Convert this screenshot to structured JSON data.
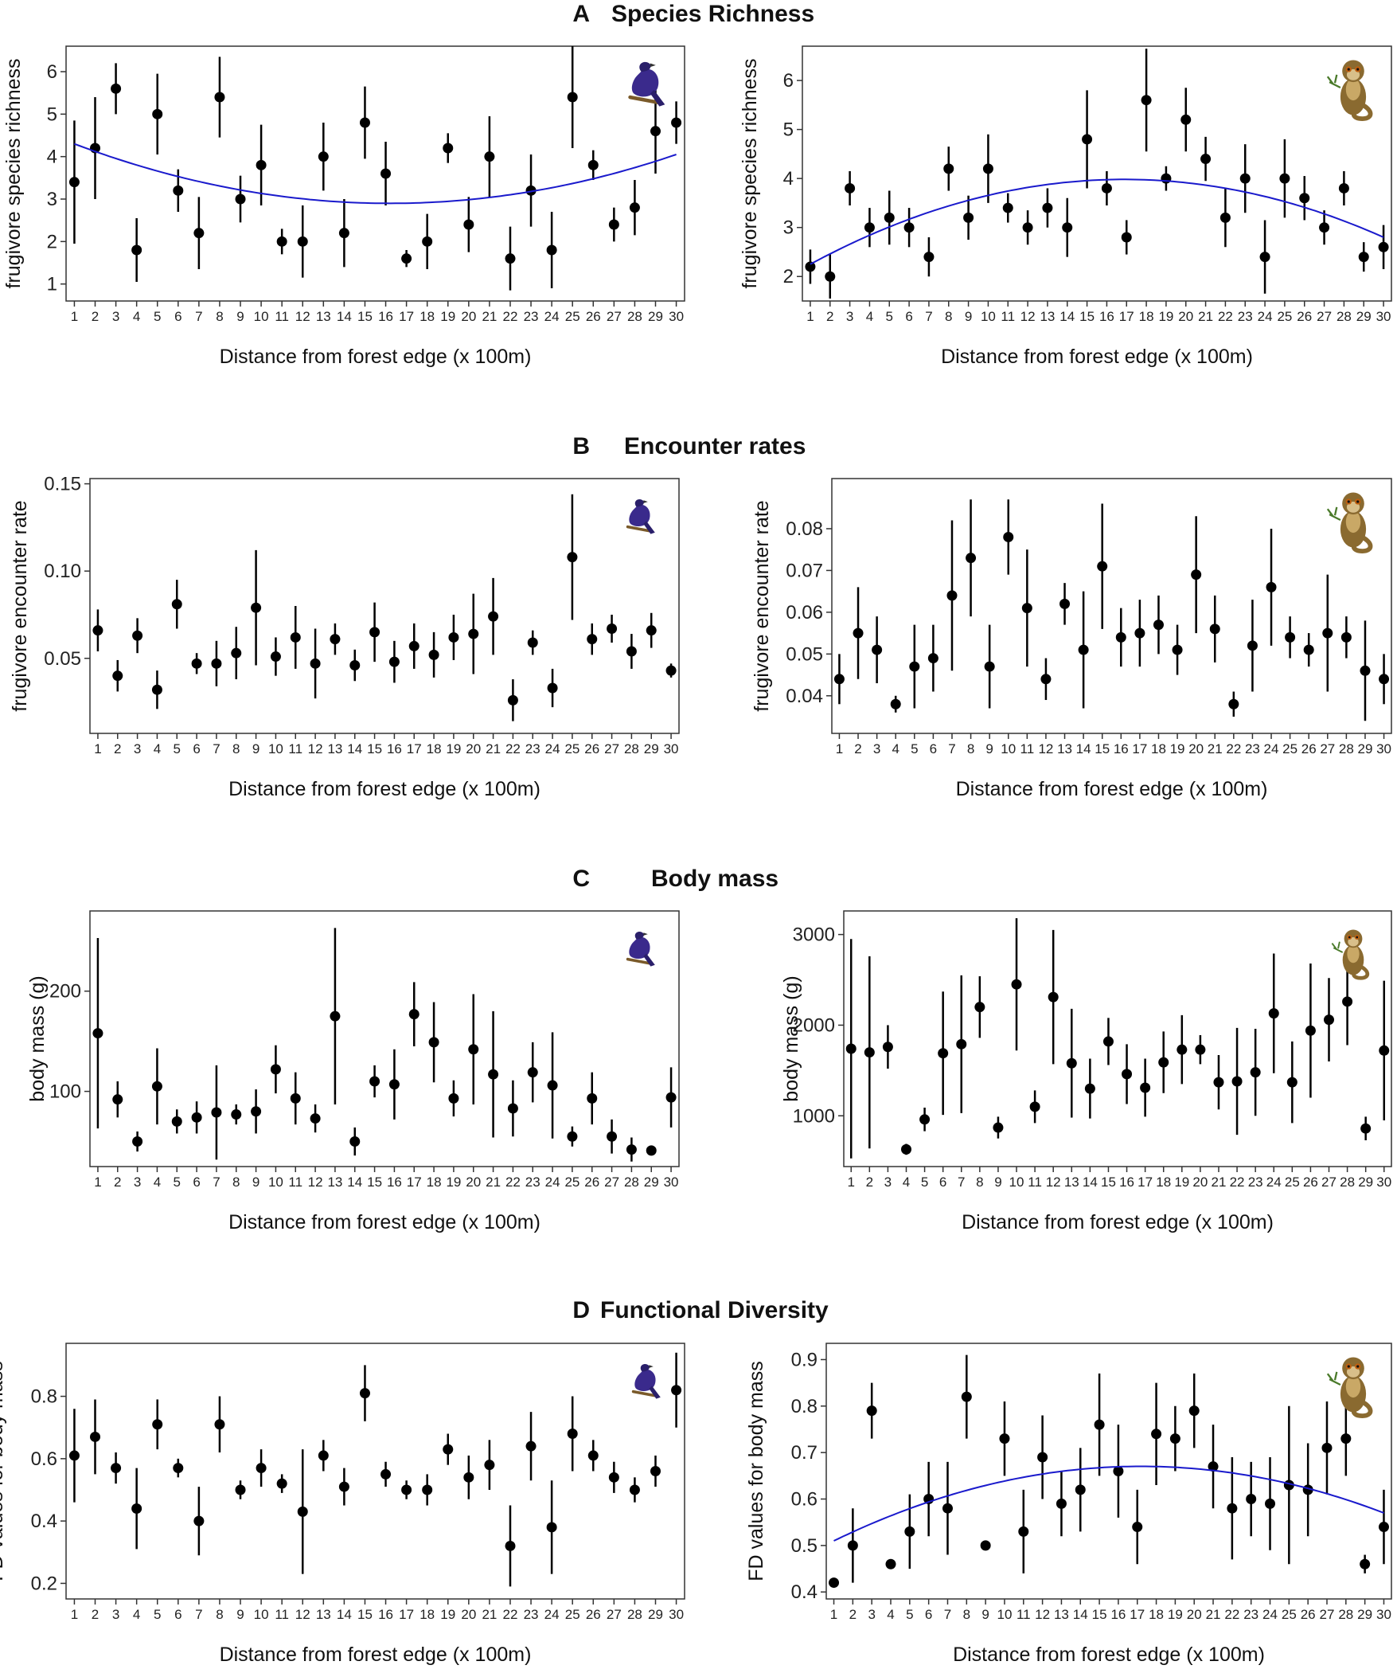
{
  "figure": {
    "sections": [
      {
        "letter": "A",
        "title": "Species Richness"
      },
      {
        "letter": "B",
        "title": "Encounter rates"
      },
      {
        "letter": "C",
        "title": "Body mass"
      },
      {
        "letter": "D",
        "title": "Functional Diversity"
      }
    ],
    "icons": {
      "bird": "bird-icon",
      "lemur": "lemur-icon"
    },
    "colors": {
      "point": "#000000",
      "trend": "#1a1acc",
      "frame": "#333333",
      "bird": "#3a2a8c",
      "lemur": "#8a6a30"
    }
  },
  "chart_data": [
    {
      "id": "A-bird",
      "section": "A",
      "type": "scatter",
      "title": "",
      "xlabel": "Distance from forest edge (x 100m)",
      "ylabel": "frugivore species richness",
      "x": [
        1,
        2,
        3,
        4,
        5,
        6,
        7,
        8,
        9,
        10,
        11,
        12,
        13,
        14,
        15,
        16,
        17,
        18,
        19,
        20,
        21,
        22,
        23,
        24,
        25,
        26,
        27,
        28,
        29,
        30
      ],
      "y": [
        3.4,
        4.2,
        5.6,
        1.8,
        5.0,
        3.2,
        2.2,
        5.4,
        3.0,
        3.8,
        2.0,
        2.0,
        4.0,
        2.2,
        4.8,
        3.6,
        1.6,
        2.0,
        4.2,
        2.4,
        4.0,
        1.6,
        3.2,
        1.8,
        5.4,
        3.8,
        2.4,
        2.8,
        4.6,
        4.8
      ],
      "err": [
        1.45,
        1.2,
        0.6,
        0.75,
        0.95,
        0.5,
        0.85,
        0.95,
        0.55,
        0.95,
        0.3,
        0.85,
        0.8,
        0.8,
        0.85,
        0.75,
        0.2,
        0.65,
        0.35,
        0.65,
        0.95,
        0.75,
        0.85,
        0.9,
        1.2,
        0.35,
        0.4,
        0.65,
        1.0,
        0.5
      ],
      "ylim": [
        0.6,
        6.6
      ],
      "yticks": [
        1,
        2,
        3,
        4,
        5,
        6
      ],
      "trend": [
        4.3,
        2.9,
        4.05
      ],
      "icon": "bird"
    },
    {
      "id": "A-lemur",
      "section": "A",
      "type": "scatter",
      "title": "",
      "xlabel": "Distance from forest edge (x 100m)",
      "ylabel": "frugivore species richness",
      "x": [
        1,
        2,
        3,
        4,
        5,
        6,
        7,
        8,
        9,
        10,
        11,
        12,
        13,
        14,
        15,
        16,
        17,
        18,
        19,
        20,
        21,
        22,
        23,
        24,
        25,
        26,
        27,
        28,
        29,
        30
      ],
      "y": [
        2.2,
        2.0,
        3.8,
        3.0,
        3.2,
        3.0,
        2.4,
        4.2,
        3.2,
        4.2,
        3.4,
        3.0,
        3.4,
        3.0,
        4.8,
        3.8,
        2.8,
        5.6,
        4.0,
        5.2,
        4.4,
        3.2,
        4.0,
        2.4,
        4.0,
        3.6,
        3.0,
        3.8,
        2.4,
        2.6
      ],
      "err": [
        0.35,
        0.45,
        0.35,
        0.4,
        0.55,
        0.4,
        0.4,
        0.45,
        0.45,
        0.7,
        0.3,
        0.35,
        0.4,
        0.6,
        1.0,
        0.35,
        0.35,
        1.05,
        0.25,
        0.65,
        0.45,
        0.6,
        0.7,
        0.75,
        0.8,
        0.45,
        0.35,
        0.35,
        0.3,
        0.45
      ],
      "ylim": [
        1.5,
        6.7
      ],
      "yticks": [
        2,
        3,
        4,
        5,
        6
      ],
      "trend": [
        2.25,
        3.98,
        2.8
      ],
      "icon": "lemur"
    },
    {
      "id": "B-bird",
      "section": "B",
      "type": "scatter",
      "title": "",
      "xlabel": "Distance from forest edge (x 100m)",
      "ylabel": "frugivore encounter rate",
      "x": [
        1,
        2,
        3,
        4,
        5,
        6,
        7,
        8,
        9,
        10,
        11,
        12,
        13,
        14,
        15,
        16,
        17,
        18,
        19,
        20,
        21,
        22,
        23,
        24,
        25,
        26,
        27,
        28,
        29,
        30
      ],
      "y": [
        0.066,
        0.04,
        0.063,
        0.032,
        0.081,
        0.047,
        0.047,
        0.053,
        0.079,
        0.051,
        0.062,
        0.047,
        0.061,
        0.046,
        0.065,
        0.048,
        0.057,
        0.052,
        0.062,
        0.064,
        0.074,
        0.026,
        0.059,
        0.033,
        0.108,
        0.061,
        0.067,
        0.054,
        0.066,
        0.043
      ],
      "err": [
        0.012,
        0.009,
        0.01,
        0.011,
        0.014,
        0.006,
        0.013,
        0.015,
        0.033,
        0.011,
        0.018,
        0.02,
        0.009,
        0.009,
        0.017,
        0.012,
        0.013,
        0.013,
        0.013,
        0.023,
        0.022,
        0.012,
        0.007,
        0.011,
        0.036,
        0.009,
        0.008,
        0.01,
        0.01,
        0.004
      ],
      "ylim": [
        0.007,
        0.153
      ],
      "yticks": [
        0.05,
        0.1,
        0.15
      ],
      "ytick_labels": [
        "0.05",
        "0.10",
        "0.15"
      ],
      "trend": null,
      "icon": "bird"
    },
    {
      "id": "B-lemur",
      "section": "B",
      "type": "scatter",
      "title": "",
      "xlabel": "Distance from forest edge (x 100m)",
      "ylabel": "frugivore encounter rate",
      "x": [
        1,
        2,
        3,
        4,
        5,
        6,
        7,
        8,
        9,
        10,
        11,
        12,
        13,
        14,
        15,
        16,
        17,
        18,
        19,
        20,
        21,
        22,
        23,
        24,
        25,
        26,
        27,
        28,
        29,
        30
      ],
      "y": [
        0.044,
        0.055,
        0.051,
        0.038,
        0.047,
        0.049,
        0.064,
        0.073,
        0.047,
        0.078,
        0.061,
        0.044,
        0.062,
        0.051,
        0.071,
        0.054,
        0.055,
        0.057,
        0.051,
        0.069,
        0.056,
        0.038,
        0.052,
        0.066,
        0.054,
        0.051,
        0.055,
        0.054,
        0.046,
        0.044
      ],
      "err": [
        0.006,
        0.011,
        0.008,
        0.002,
        0.01,
        0.008,
        0.018,
        0.014,
        0.01,
        0.009,
        0.014,
        0.005,
        0.005,
        0.014,
        0.015,
        0.007,
        0.008,
        0.007,
        0.006,
        0.014,
        0.008,
        0.003,
        0.011,
        0.014,
        0.005,
        0.004,
        0.014,
        0.005,
        0.012,
        0.006
      ],
      "ylim": [
        0.031,
        0.092
      ],
      "yticks": [
        0.04,
        0.05,
        0.06,
        0.07,
        0.08
      ],
      "ytick_labels": [
        "0.04",
        "0.05",
        "0.06",
        "0.07",
        "0.08"
      ],
      "trend": null,
      "icon": "lemur"
    },
    {
      "id": "C-bird",
      "section": "C",
      "type": "scatter",
      "title": "",
      "xlabel": "Distance from forest edge (x 100m)",
      "ylabel": "body mass (g)",
      "x": [
        1,
        2,
        3,
        4,
        5,
        6,
        7,
        8,
        9,
        10,
        11,
        12,
        13,
        14,
        15,
        16,
        17,
        18,
        19,
        20,
        21,
        22,
        23,
        24,
        25,
        26,
        27,
        28,
        29,
        30
      ],
      "y": [
        158,
        92,
        50,
        105,
        70,
        74,
        79,
        77,
        80,
        122,
        93,
        73,
        175,
        50,
        110,
        107,
        177,
        149,
        93,
        142,
        117,
        83,
        119,
        106,
        55,
        93,
        55,
        42,
        41,
        94
      ],
      "err": [
        95,
        18,
        10,
        38,
        12,
        16,
        47,
        10,
        22,
        24,
        26,
        14,
        88,
        14,
        16,
        35,
        32,
        40,
        18,
        55,
        63,
        28,
        30,
        53,
        10,
        26,
        17,
        12,
        4,
        30
      ],
      "ylim": [
        25,
        280
      ],
      "yticks": [
        100,
        200
      ],
      "trend": null,
      "icon": "bird"
    },
    {
      "id": "C-lemur",
      "section": "C",
      "type": "scatter",
      "title": "",
      "xlabel": "Distance from forest edge (x 100m)",
      "ylabel": "body mass (g)",
      "x": [
        1,
        2,
        3,
        4,
        5,
        6,
        7,
        8,
        9,
        10,
        11,
        12,
        13,
        14,
        15,
        16,
        17,
        18,
        19,
        20,
        21,
        22,
        23,
        24,
        25,
        26,
        27,
        28,
        29,
        30
      ],
      "y": [
        1740,
        1700,
        1760,
        630,
        960,
        1690,
        1790,
        2200,
        870,
        2450,
        1100,
        2310,
        1580,
        1300,
        1820,
        1460,
        1310,
        1590,
        1730,
        1730,
        1370,
        1380,
        1480,
        2130,
        1370,
        1940,
        2060,
        2260,
        860,
        1720
      ],
      "err": [
        1210,
        1060,
        240,
        60,
        130,
        680,
        760,
        340,
        120,
        730,
        180,
        740,
        600,
        330,
        260,
        330,
        320,
        340,
        380,
        160,
        300,
        590,
        480,
        660,
        450,
        740,
        460,
        480,
        130,
        770
      ],
      "ylim": [
        440,
        3260
      ],
      "yticks": [
        1000,
        2000,
        3000
      ],
      "trend": null,
      "icon": "lemur"
    },
    {
      "id": "D-bird",
      "section": "D",
      "type": "scatter",
      "title": "",
      "xlabel": "Distance from forest edge (x 100m)",
      "ylabel": "FD values for body mass",
      "x": [
        1,
        2,
        3,
        4,
        5,
        6,
        7,
        8,
        9,
        10,
        11,
        12,
        13,
        14,
        15,
        16,
        17,
        18,
        19,
        20,
        21,
        22,
        23,
        24,
        25,
        26,
        27,
        28,
        29,
        30
      ],
      "y": [
        0.61,
        0.67,
        0.57,
        0.44,
        0.71,
        0.57,
        0.4,
        0.71,
        0.5,
        0.57,
        0.52,
        0.43,
        0.61,
        0.51,
        0.81,
        0.55,
        0.5,
        0.5,
        0.63,
        0.54,
        0.58,
        0.32,
        0.64,
        0.38,
        0.68,
        0.61,
        0.54,
        0.5,
        0.56,
        0.82
      ],
      "err": [
        0.15,
        0.12,
        0.05,
        0.13,
        0.08,
        0.03,
        0.11,
        0.09,
        0.03,
        0.06,
        0.03,
        0.2,
        0.05,
        0.06,
        0.09,
        0.04,
        0.03,
        0.05,
        0.05,
        0.07,
        0.08,
        0.13,
        0.11,
        0.15,
        0.12,
        0.05,
        0.05,
        0.04,
        0.05,
        0.12
      ],
      "ylim": [
        0.15,
        0.97
      ],
      "yticks": [
        0.2,
        0.4,
        0.6,
        0.8
      ],
      "ytick_labels": [
        "0.2",
        "0.4",
        "0.6",
        "0.8"
      ],
      "trend": null,
      "icon": "bird"
    },
    {
      "id": "D-lemur",
      "section": "D",
      "type": "scatter",
      "title": "",
      "xlabel": "Distance from forest edge (x 100m)",
      "ylabel": "FD values for body mass",
      "x": [
        1,
        2,
        3,
        4,
        5,
        6,
        7,
        8,
        9,
        10,
        11,
        12,
        13,
        14,
        15,
        16,
        17,
        18,
        19,
        20,
        21,
        22,
        23,
        24,
        25,
        26,
        27,
        28,
        29,
        30
      ],
      "y": [
        0.42,
        0.5,
        0.79,
        0.46,
        0.53,
        0.6,
        0.58,
        0.82,
        0.5,
        0.73,
        0.53,
        0.69,
        0.59,
        0.62,
        0.76,
        0.66,
        0.54,
        0.74,
        0.73,
        0.79,
        0.67,
        0.58,
        0.6,
        0.59,
        0.63,
        0.62,
        0.71,
        0.73,
        0.46,
        0.54
      ],
      "err": [
        0.01,
        0.08,
        0.06,
        0.005,
        0.08,
        0.08,
        0.1,
        0.09,
        0.01,
        0.08,
        0.09,
        0.09,
        0.07,
        0.09,
        0.11,
        0.1,
        0.08,
        0.11,
        0.07,
        0.08,
        0.09,
        0.11,
        0.08,
        0.1,
        0.17,
        0.1,
        0.1,
        0.08,
        0.02,
        0.08
      ],
      "ylim": [
        0.385,
        0.935
      ],
      "yticks": [
        0.4,
        0.5,
        0.6,
        0.7,
        0.8,
        0.9
      ],
      "ytick_labels": [
        "0.4",
        "0.5",
        "0.6",
        "0.7",
        "0.8",
        "0.9"
      ],
      "trend": [
        0.51,
        0.67,
        0.57
      ],
      "icon": "lemur"
    }
  ]
}
